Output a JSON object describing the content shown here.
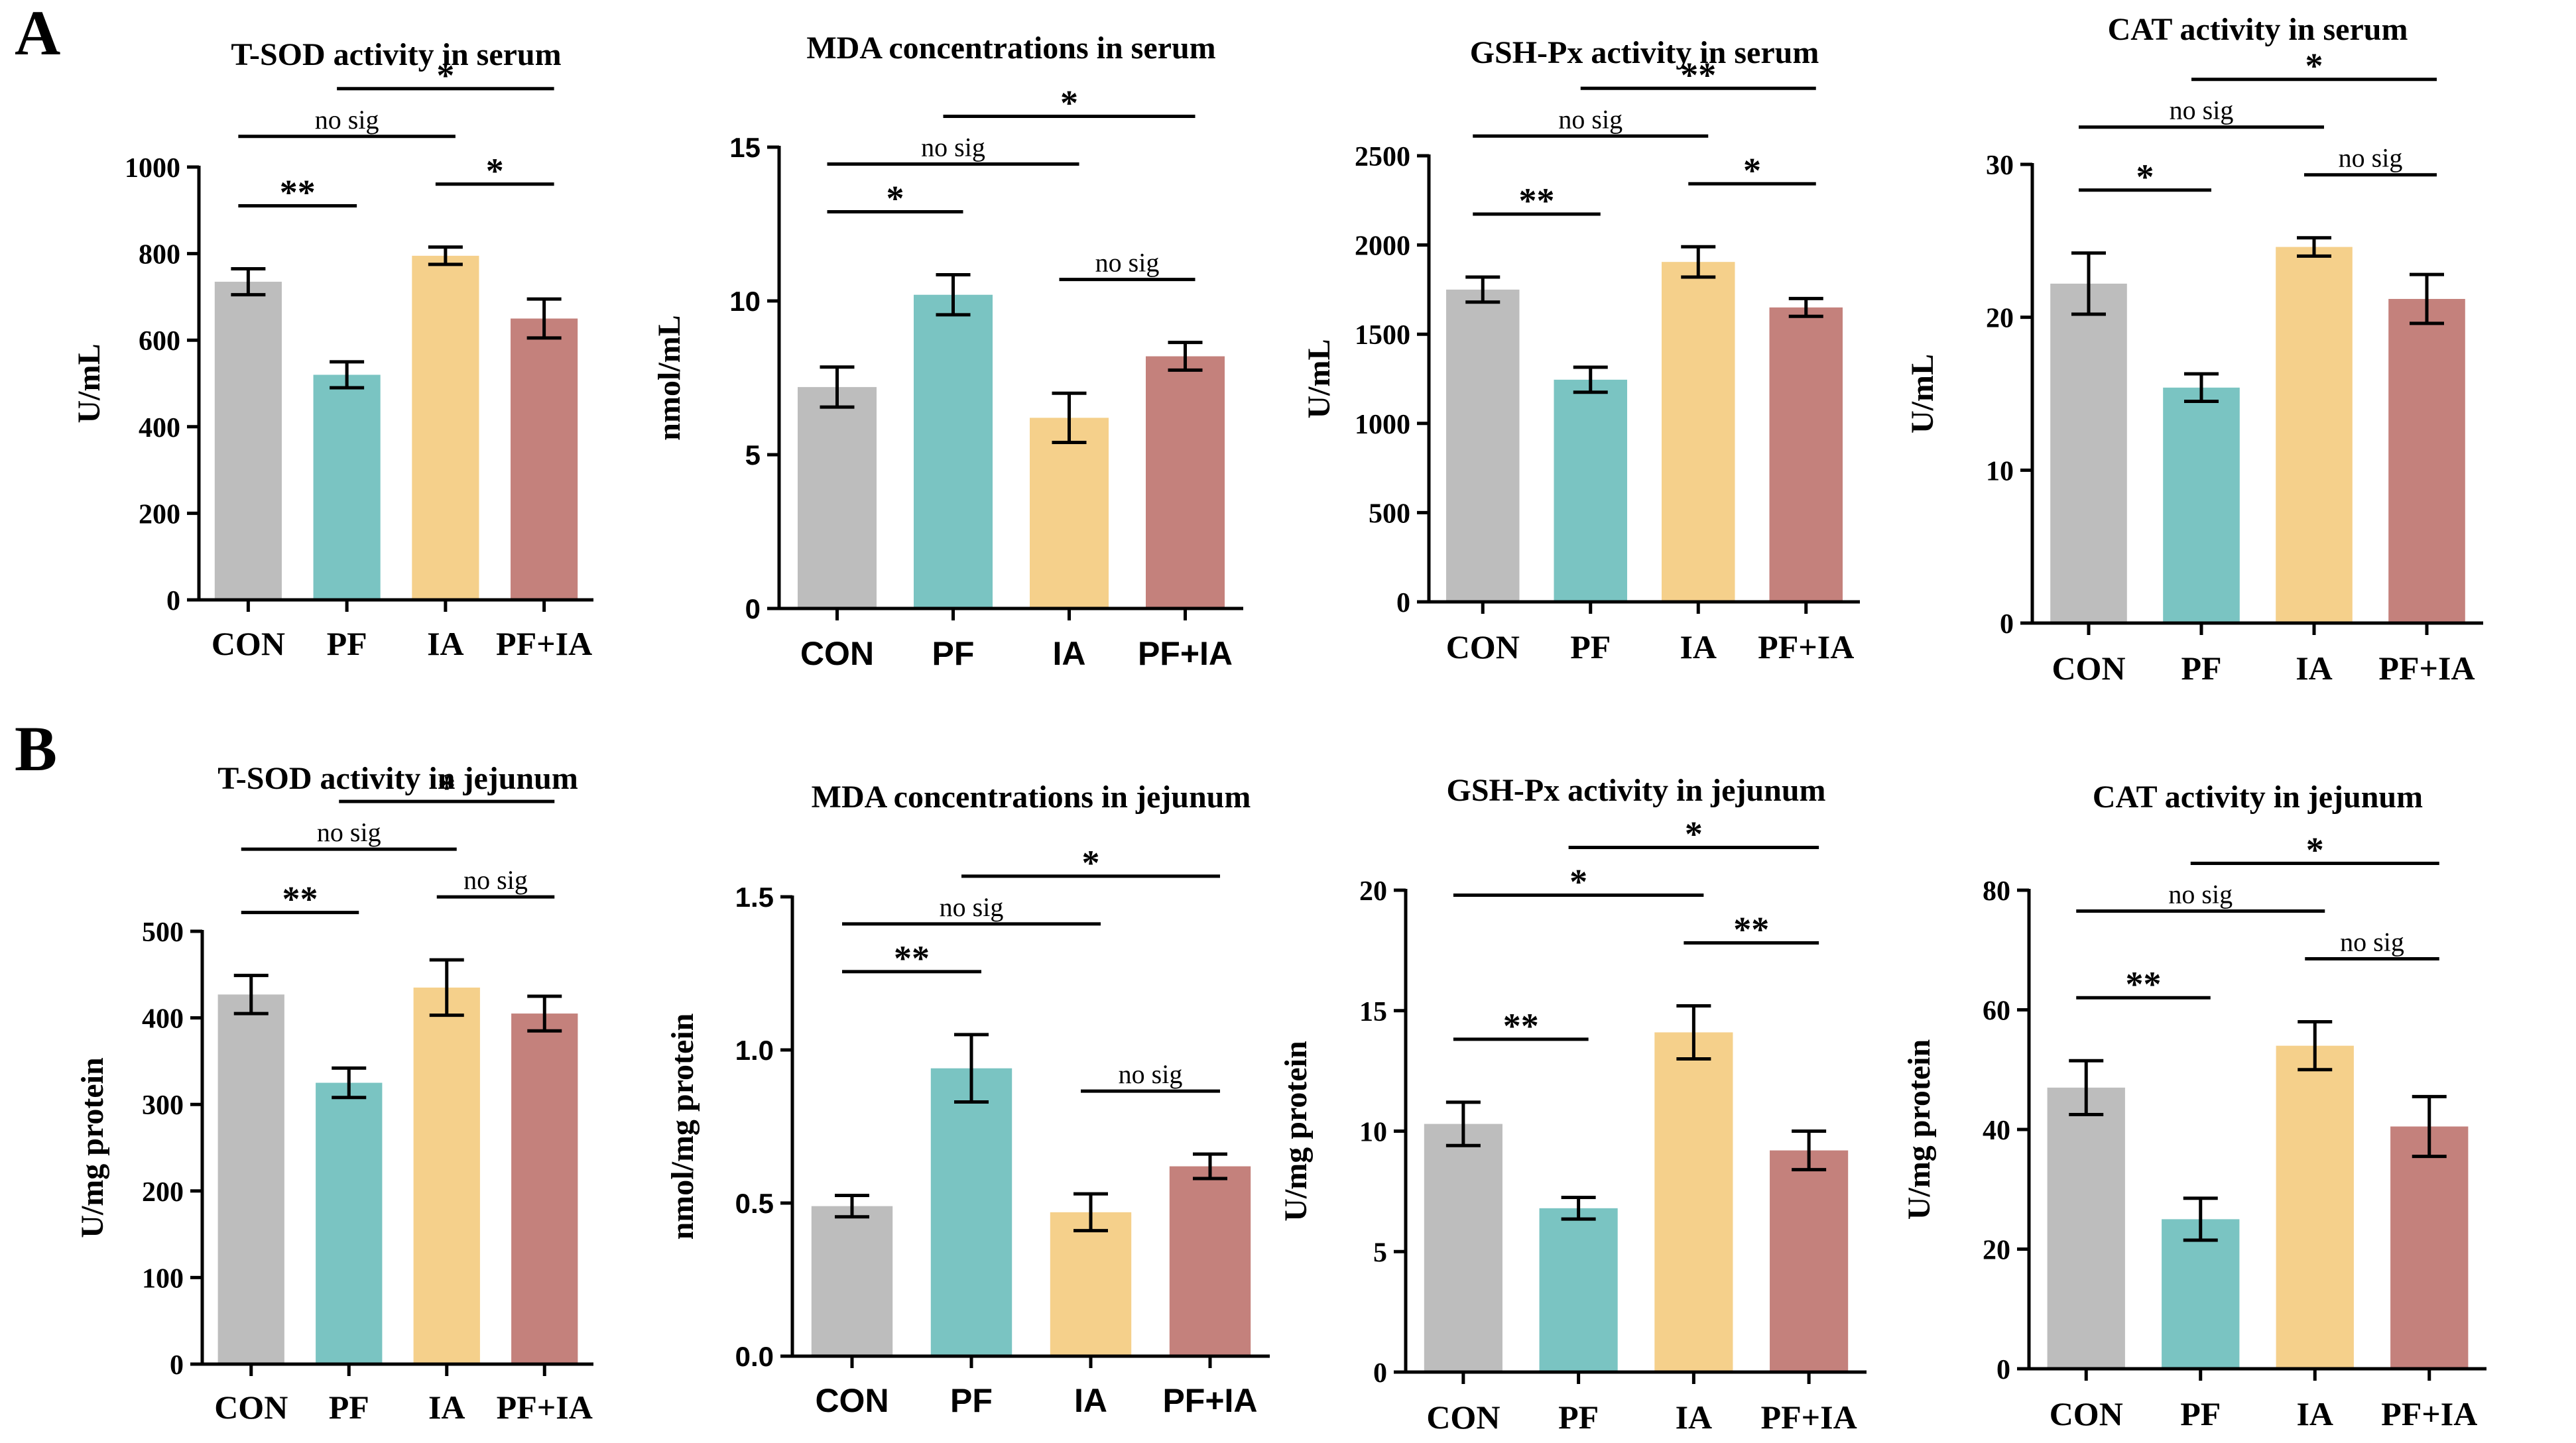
{
  "panel_labels": [
    "A",
    "B"
  ],
  "colors": {
    "CON": "#bdbdbd",
    "PF": "#7ac4c2",
    "IA": "#f5d08b",
    "PF+IA": "#c4817c",
    "axis": "#000000"
  },
  "chart_data": [
    {
      "type": "bar",
      "panel": "A",
      "title": "T-SOD activity in serum",
      "ylabel": "U/mL",
      "categories": [
        "CON",
        "PF",
        "IA",
        "PF+IA"
      ],
      "values": [
        735,
        520,
        795,
        650
      ],
      "errors": [
        30,
        30,
        20,
        45
      ],
      "ylim": [
        0,
        1000
      ],
      "yticks": [
        0,
        200,
        400,
        600,
        800,
        1000
      ],
      "significance": [
        {
          "from": "CON",
          "to": "IA",
          "label": "no sig",
          "level": 1
        },
        {
          "from": "PF",
          "to": "PF+IA",
          "label": "*",
          "level": 0
        },
        {
          "from": "CON",
          "to": "PF",
          "label": "**",
          "level": 0
        },
        {
          "from": "IA",
          "to": "PF+IA",
          "label": "*",
          "level": 0
        }
      ]
    },
    {
      "type": "bar",
      "panel": "A",
      "title": "MDA concentrations  in serum",
      "ylabel": "nmol/mL",
      "categories": [
        "CON",
        "PF",
        "IA",
        "PF+IA"
      ],
      "values": [
        7.2,
        10.2,
        6.2,
        8.2
      ],
      "errors": [
        0.65,
        0.65,
        0.8,
        0.45
      ],
      "ylim": [
        0,
        15
      ],
      "yticks": [
        0,
        5,
        10,
        15
      ],
      "significance": [
        {
          "from": "CON",
          "to": "IA",
          "label": "no sig",
          "level": 1
        },
        {
          "from": "CON",
          "to": "PF",
          "label": "*",
          "level": 0
        },
        {
          "from": "PF",
          "to": "PF+IA",
          "label": "*",
          "level": 0
        },
        {
          "from": "IA",
          "to": "PF+IA",
          "label": "no sig",
          "level": 0
        }
      ]
    },
    {
      "type": "bar",
      "panel": "A",
      "title": "GSH-Px activity in serum",
      "ylabel": "U/mL",
      "categories": [
        "CON",
        "PF",
        "IA",
        "PF+IA"
      ],
      "values": [
        1750,
        1245,
        1905,
        1650
      ],
      "errors": [
        70,
        70,
        85,
        50
      ],
      "ylim": [
        0,
        2500
      ],
      "yticks": [
        0,
        500,
        1000,
        1500,
        2000,
        2500
      ],
      "significance": [
        {
          "from": "CON",
          "to": "IA",
          "label": "no sig",
          "level": 1
        },
        {
          "from": "PF",
          "to": "PF+IA",
          "label": "**",
          "level": 0
        },
        {
          "from": "CON",
          "to": "PF",
          "label": "**",
          "level": 0
        },
        {
          "from": "IA",
          "to": "PF+IA",
          "label": "*",
          "level": 0
        }
      ]
    },
    {
      "type": "bar",
      "panel": "A",
      "title": "CAT activity in serum",
      "ylabel": "U/mL",
      "categories": [
        "CON",
        "PF",
        "IA",
        "PF+IA"
      ],
      "values": [
        22.2,
        15.4,
        24.6,
        21.2
      ],
      "errors": [
        2.0,
        0.9,
        0.6,
        1.6
      ],
      "ylim": [
        0,
        30
      ],
      "yticks": [
        0,
        10,
        20,
        30
      ],
      "significance": [
        {
          "from": "CON",
          "to": "IA",
          "label": "no sig",
          "level": 1
        },
        {
          "from": "PF",
          "to": "PF+IA",
          "label": "*",
          "level": 0
        },
        {
          "from": "CON",
          "to": "PF",
          "label": "*",
          "level": 0
        },
        {
          "from": "IA",
          "to": "PF+IA",
          "label": "no sig",
          "level": 0
        }
      ]
    },
    {
      "type": "bar",
      "panel": "B",
      "title": "T-SOD activity in jejunum",
      "ylabel": "U/mg protein",
      "categories": [
        "CON",
        "PF",
        "IA",
        "PF+IA"
      ],
      "values": [
        427,
        325,
        435,
        405
      ],
      "errors": [
        22,
        17,
        32,
        20
      ],
      "ylim": [
        0,
        500
      ],
      "yticks": [
        0,
        100,
        200,
        300,
        400,
        500
      ],
      "significance": [
        {
          "from": "CON",
          "to": "IA",
          "label": "no sig",
          "level": 1
        },
        {
          "from": "PF",
          "to": "PF+IA",
          "label": "*",
          "level": 0
        },
        {
          "from": "CON",
          "to": "PF",
          "label": "**",
          "level": 0
        },
        {
          "from": "IA",
          "to": "PF+IA",
          "label": "no sig",
          "level": 0
        }
      ]
    },
    {
      "type": "bar",
      "panel": "B",
      "title": "MDA concentrations  in jejunum",
      "ylabel": "nmol/mg protein",
      "categories": [
        "CON",
        "PF",
        "IA",
        "PF+IA"
      ],
      "values": [
        0.49,
        0.94,
        0.47,
        0.62
      ],
      "errors": [
        0.035,
        0.11,
        0.06,
        0.04
      ],
      "ylim": [
        0,
        1.5
      ],
      "yticks": [
        0,
        0.5,
        1.0,
        1.5
      ],
      "ytick_labels": [
        "0.0",
        "0.5",
        "1.0",
        "1.5"
      ],
      "significance": [
        {
          "from": "CON",
          "to": "IA",
          "label": "no sig",
          "level": 1
        },
        {
          "from": "PF",
          "to": "PF+IA",
          "label": "*",
          "level": 0
        },
        {
          "from": "CON",
          "to": "PF",
          "label": "**",
          "level": 0
        },
        {
          "from": "IA",
          "to": "PF+IA",
          "label": "no sig",
          "level": 0
        }
      ]
    },
    {
      "type": "bar",
      "panel": "B",
      "title": "GSH-Px activity in jejunum",
      "ylabel": "U/mg protein",
      "categories": [
        "CON",
        "PF",
        "IA",
        "PF+IA"
      ],
      "values": [
        10.3,
        6.8,
        14.1,
        9.2
      ],
      "errors": [
        0.9,
        0.45,
        1.1,
        0.8
      ],
      "ylim": [
        0,
        20
      ],
      "yticks": [
        0,
        5,
        10,
        15,
        20
      ],
      "significance": [
        {
          "from": "CON",
          "to": "IA",
          "label": "*",
          "level": 1
        },
        {
          "from": "PF",
          "to": "PF+IA",
          "label": "*",
          "level": 0
        },
        {
          "from": "CON",
          "to": "PF",
          "label": "**",
          "level": 0
        },
        {
          "from": "IA",
          "to": "PF+IA",
          "label": "**",
          "level": 0
        }
      ]
    },
    {
      "type": "bar",
      "panel": "B",
      "title": "CAT activity in jejunum",
      "ylabel": "U/mg protein",
      "categories": [
        "CON",
        "PF",
        "IA",
        "PF+IA"
      ],
      "values": [
        47,
        25,
        54,
        40.5
      ],
      "errors": [
        4.5,
        3.5,
        4.0,
        5.0
      ],
      "ylim": [
        0,
        80
      ],
      "yticks": [
        0,
        20,
        40,
        60,
        80
      ],
      "significance": [
        {
          "from": "CON",
          "to": "IA",
          "label": "no sig",
          "level": 1
        },
        {
          "from": "PF",
          "to": "PF+IA",
          "label": "*",
          "level": 0
        },
        {
          "from": "CON",
          "to": "PF",
          "label": "**",
          "level": 0
        },
        {
          "from": "IA",
          "to": "PF+IA",
          "label": "no sig",
          "level": 0
        }
      ]
    }
  ]
}
